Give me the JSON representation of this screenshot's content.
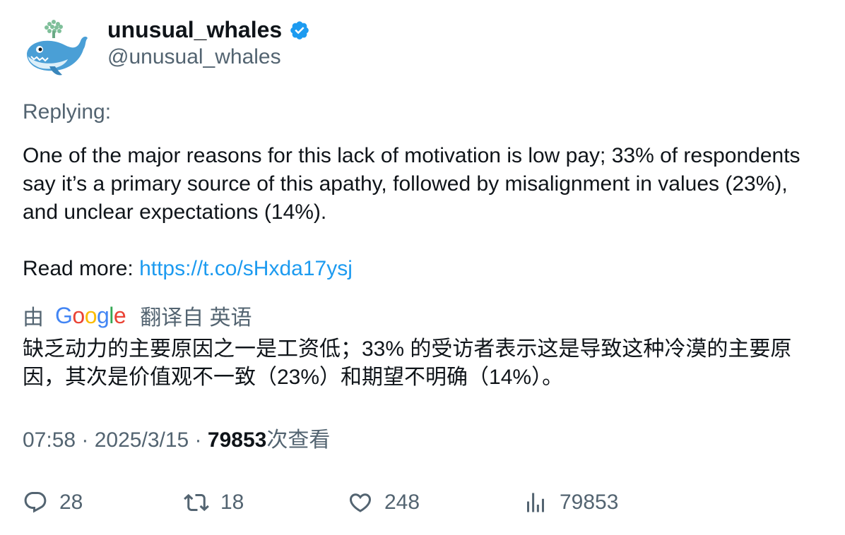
{
  "tweet": {
    "display_name": "unusual_whales",
    "handle": "@unusual_whales",
    "replying_label": "Replying:",
    "text": "One of the major reasons for this lack of motivation is low pay; 33% of respondents say it’s a primary source of this apathy, followed by misalignment in values (23%), and unclear expectations (14%).",
    "read_more_label": "Read more: ",
    "link": "https://t.co/sHxda17ysj"
  },
  "translation": {
    "prefix": "由",
    "provider": "Google",
    "suffix": "翻译自 英语",
    "text": "缺乏动力的主要原因之一是工资低；33% 的受访者表示这是导致这种冷漠的主要原因，其次是价值观不一致（23%）和期望不明确（14%）。"
  },
  "meta": {
    "time": "07:58",
    "separator": " · ",
    "date": "2025/3/15",
    "views_count": "79853",
    "views_label": "次查看"
  },
  "actions": {
    "replies": "28",
    "retweets": "18",
    "likes": "248",
    "views": "79853"
  },
  "icons": {
    "avatar": "whale-avatar-icon",
    "verified": "verified-badge-icon",
    "reply": "reply-icon",
    "retweet": "retweet-icon",
    "like": "heart-icon",
    "views": "bar-chart-icon"
  },
  "colors": {
    "link": "#1d9bf0",
    "secondary_text": "#536471",
    "primary_text": "#0f1419",
    "verified": "#1d9bf0"
  }
}
